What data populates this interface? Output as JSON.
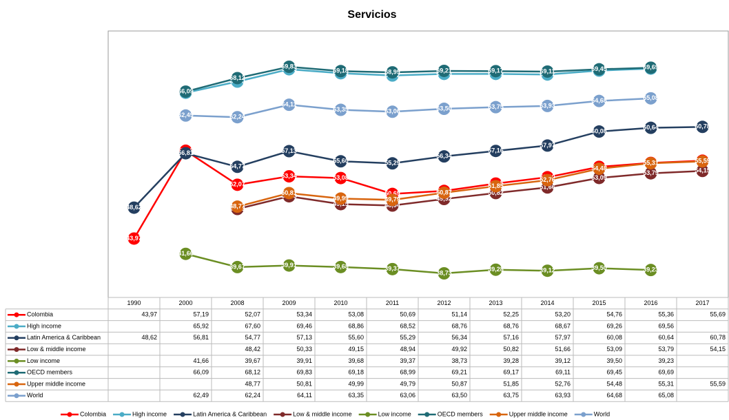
{
  "chart_data": {
    "type": "line",
    "title": "Servicios",
    "categories": [
      "1990",
      "2000",
      "2008",
      "2009",
      "2010",
      "2011",
      "2012",
      "2013",
      "2014",
      "2015",
      "2016",
      "2017"
    ],
    "series": [
      {
        "name": "Colombia",
        "color": "#ff0000",
        "values": [
          43.97,
          57.19,
          52.07,
          53.34,
          53.08,
          50.69,
          51.14,
          52.25,
          53.2,
          54.76,
          55.36,
          55.69
        ],
        "value_labels": [
          "43,97",
          "57,19",
          "52,07",
          "53,34",
          "53,08",
          "50,69",
          "51,14",
          "52,25",
          "53,20",
          "54,76",
          "55,36",
          "55,69"
        ]
      },
      {
        "name": "High income",
        "color": "#4bacc6",
        "values": [
          null,
          65.92,
          67.6,
          69.46,
          68.86,
          68.52,
          68.76,
          68.76,
          68.67,
          69.26,
          69.56,
          null
        ],
        "value_labels": [
          null,
          "65,92",
          "67,60",
          "69,46",
          "68,86",
          "68,52",
          "68,76",
          "68,76",
          "68,67",
          "69,26",
          "69,56",
          null
        ]
      },
      {
        "name": "Latin America & Caribbean",
        "color": "#243f60",
        "values": [
          48.62,
          56.81,
          54.77,
          57.13,
          55.6,
          55.29,
          56.34,
          57.16,
          57.97,
          60.08,
          60.64,
          60.78
        ],
        "value_labels": [
          "48,62",
          "56,81",
          "54,77",
          "57,13",
          "55,60",
          "55,29",
          "56,34",
          "57,16",
          "57,97",
          "60,08",
          "60,64",
          "60,78"
        ]
      },
      {
        "name": "Low & middle income",
        "color": "#7f2a2a",
        "values": [
          null,
          null,
          48.42,
          50.33,
          49.15,
          48.94,
          49.92,
          50.82,
          51.66,
          53.09,
          53.79,
          54.15
        ],
        "value_labels": [
          null,
          null,
          "48,42",
          "50,33",
          "49,15",
          "48,94",
          "49,92",
          "50,82",
          "51,66",
          "53,09",
          "53,79",
          "54,15"
        ]
      },
      {
        "name": "Low income",
        "color": "#6b8e23",
        "values": [
          null,
          41.66,
          39.67,
          39.91,
          39.68,
          39.37,
          38.73,
          39.28,
          39.12,
          39.5,
          39.23,
          null
        ],
        "value_labels": [
          null,
          "41,66",
          "39,67",
          "39,91",
          "39,68",
          "39,37",
          "38,73",
          "39,28",
          "39,12",
          "39,50",
          "39,23",
          null
        ]
      },
      {
        "name": "OECD members",
        "color": "#1f6b75",
        "values": [
          null,
          66.09,
          68.12,
          69.83,
          69.18,
          68.99,
          69.21,
          69.17,
          69.11,
          69.45,
          69.69,
          null
        ],
        "value_labels": [
          null,
          "66,09",
          "68,12",
          "69,83",
          "69,18",
          "68,99",
          "69,21",
          "69,17",
          "69,11",
          "69,45",
          "69,69",
          null
        ]
      },
      {
        "name": "Upper middle income",
        "color": "#d8650f",
        "values": [
          null,
          null,
          48.77,
          50.81,
          49.99,
          49.79,
          50.87,
          51.85,
          52.76,
          54.48,
          55.31,
          55.59
        ],
        "value_labels": [
          null,
          null,
          "48,77",
          "50,81",
          "49,99",
          "49,79",
          "50,87",
          "51,85",
          "52,76",
          "54,48",
          "55,31",
          "55,59"
        ]
      },
      {
        "name": "World",
        "color": "#7ba0cd",
        "values": [
          null,
          62.49,
          62.24,
          64.11,
          63.35,
          63.06,
          63.5,
          63.75,
          63.93,
          64.68,
          65.08,
          null
        ],
        "value_labels": [
          null,
          "62,49",
          "62,24",
          "64,11",
          "63,35",
          "63,06",
          "63,50",
          "63,75",
          "63,93",
          "64,68",
          "65,08",
          null
        ]
      }
    ]
  }
}
